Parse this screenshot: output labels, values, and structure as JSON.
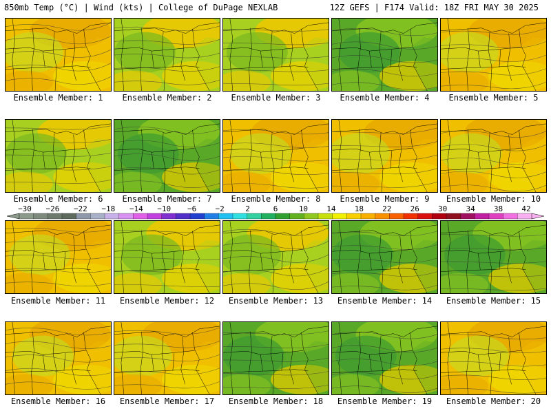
{
  "header": {
    "left": "850mb Temp (°C) | Wind (kts) | College of DuPage NEXLAB",
    "right": "12Z GEFS | F174 Valid: 18Z FRI MAY 30 2025"
  },
  "panel_label_prefix": "Ensemble Member: ",
  "members": [
    {
      "n": "1",
      "tint": "warm"
    },
    {
      "n": "2",
      "tint": "mixed"
    },
    {
      "n": "3",
      "tint": "mixed"
    },
    {
      "n": "4",
      "tint": "cool"
    },
    {
      "n": "5",
      "tint": "warm"
    },
    {
      "n": "6",
      "tint": "mixed"
    },
    {
      "n": "7",
      "tint": "cool"
    },
    {
      "n": "8",
      "tint": "warm"
    },
    {
      "n": "9",
      "tint": "warm"
    },
    {
      "n": "10",
      "tint": "warm"
    },
    {
      "n": "11",
      "tint": "warm"
    },
    {
      "n": "12",
      "tint": "mixed"
    },
    {
      "n": "13",
      "tint": "mixed"
    },
    {
      "n": "14",
      "tint": "cool"
    },
    {
      "n": "15",
      "tint": "cool"
    },
    {
      "n": "16",
      "tint": "warm"
    },
    {
      "n": "17",
      "tint": "warm"
    },
    {
      "n": "18",
      "tint": "cool"
    },
    {
      "n": "19",
      "tint": "cool"
    },
    {
      "n": "20",
      "tint": "warm"
    }
  ],
  "colorbar": {
    "ticks": [
      "−30",
      "−26",
      "−22",
      "−18",
      "−14",
      "−10",
      "−6",
      "−2",
      "2",
      "6",
      "10",
      "14",
      "18",
      "22",
      "26",
      "30",
      "34",
      "38",
      "42"
    ],
    "colors": [
      "#8c9a8c",
      "#7f8a7f",
      "#6e7a6e",
      "#5e6a5e",
      "#8f98a8",
      "#a8b0c8",
      "#c8b0e8",
      "#d890f0",
      "#e060e8",
      "#c040e0",
      "#8030d0",
      "#5030c8",
      "#2040d0",
      "#2080e8",
      "#20c0f0",
      "#30e0e0",
      "#30d0a0",
      "#20b060",
      "#30a030",
      "#60b020",
      "#90c820",
      "#c8e010",
      "#f0f000",
      "#f8d000",
      "#f8b000",
      "#f89000",
      "#f86000",
      "#f03000",
      "#d81010",
      "#b00010",
      "#901020",
      "#a01060",
      "#c020a0",
      "#e040c0",
      "#f070e0",
      "#f8b0f0"
    ]
  }
}
